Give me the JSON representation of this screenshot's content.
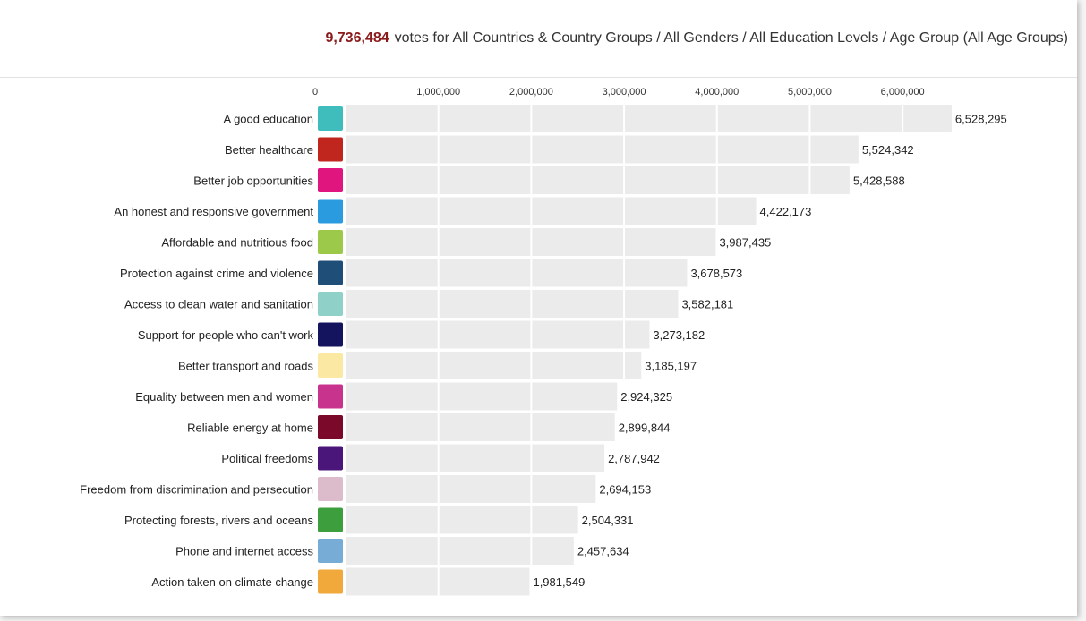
{
  "header": {
    "total": "9,736,484",
    "text": "votes for All Countries & Country Groups / All Genders / All Education Levels / Age Group (All Age Groups)"
  },
  "chart_data": {
    "type": "bar",
    "orientation": "horizontal",
    "categories": [
      "A good education",
      "Better healthcare",
      "Better job opportunities",
      "An honest and responsive government",
      "Affordable and nutritious food",
      "Protection against crime and violence",
      "Access to clean water and sanitation",
      "Support for people who can't work",
      "Better transport and roads",
      "Equality between men and women",
      "Reliable energy at home",
      "Political freedoms",
      "Freedom from discrimination and persecution",
      "Protecting forests, rivers and oceans",
      "Phone and internet access",
      "Action taken on climate change"
    ],
    "values": [
      6528295,
      5524342,
      5428588,
      4422173,
      3987435,
      3678573,
      3582181,
      3273182,
      3185197,
      2924325,
      2899844,
      2787942,
      2694153,
      2504331,
      2457634,
      1981549
    ],
    "value_labels": [
      "6,528,295",
      "5,524,342",
      "5,428,588",
      "4,422,173",
      "3,987,435",
      "3,678,573",
      "3,582,181",
      "3,273,182",
      "3,185,197",
      "2,924,325",
      "2,899,844",
      "2,787,942",
      "2,694,153",
      "2,504,331",
      "2,457,634",
      "1,981,549"
    ],
    "colors": [
      "#3fbdbd",
      "#c0261e",
      "#e0157e",
      "#2b9be0",
      "#9dc94a",
      "#1f4e79",
      "#8fd0c9",
      "#14145e",
      "#fae8a3",
      "#c8338e",
      "#7b0a2a",
      "#4b1679",
      "#dcbccb",
      "#3c9e3c",
      "#76acd6",
      "#f2a93b"
    ],
    "xticks": [
      "0",
      "1,000,000",
      "2,000,000",
      "3,000,000",
      "4,000,000",
      "5,000,000",
      "6,000,000"
    ],
    "xlim": [
      0,
      6500000
    ],
    "bar_color": "#ebebeb",
    "gridlines": true
  }
}
